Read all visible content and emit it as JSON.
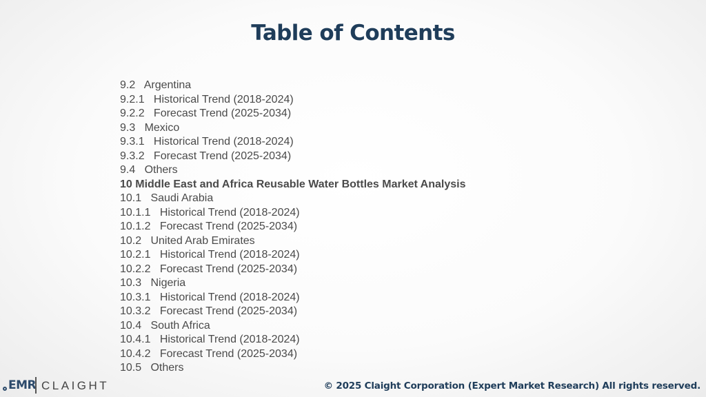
{
  "title": "Table of Contents",
  "toc": [
    {
      "text": "9.2   Argentina",
      "bold": false
    },
    {
      "text": "9.2.1   Historical Trend (2018-2024)",
      "bold": false
    },
    {
      "text": "9.2.2   Forecast Trend (2025-2034)",
      "bold": false
    },
    {
      "text": "9.3   Mexico",
      "bold": false
    },
    {
      "text": "9.3.1   Historical Trend (2018-2024)",
      "bold": false
    },
    {
      "text": "9.3.2   Forecast Trend (2025-2034)",
      "bold": false
    },
    {
      "text": "9.4   Others",
      "bold": false
    },
    {
      "text": "10 Middle East and Africa Reusable Water Bottles Market Analysis",
      "bold": true
    },
    {
      "text": "10.1   Saudi Arabia",
      "bold": false
    },
    {
      "text": "10.1.1   Historical Trend (2018-2024)",
      "bold": false
    },
    {
      "text": "10.1.2   Forecast Trend (2025-2034)",
      "bold": false
    },
    {
      "text": "10.2   United Arab Emirates",
      "bold": false
    },
    {
      "text": "10.2.1   Historical Trend (2018-2024)",
      "bold": false
    },
    {
      "text": "10.2.2   Forecast Trend (2025-2034)",
      "bold": false
    },
    {
      "text": "10.3   Nigeria",
      "bold": false
    },
    {
      "text": "10.3.1   Historical Trend (2018-2024)",
      "bold": false
    },
    {
      "text": "10.3.2   Forecast Trend (2025-2034)",
      "bold": false
    },
    {
      "text": "10.4   South Africa",
      "bold": false
    },
    {
      "text": "10.4.1   Historical Trend (2018-2024)",
      "bold": false
    },
    {
      "text": "10.4.2   Forecast Trend (2025-2034)",
      "bold": false
    },
    {
      "text": "10.5   Others",
      "bold": false
    }
  ],
  "logo": {
    "left": "EMR",
    "right": "CLAIGHT"
  },
  "footer": {
    "copyright": "© 2025 Claight Corporation (Expert Market Research) All rights reserved."
  },
  "colors": {
    "title": "#1f3d5a",
    "text": "#4a4a4a",
    "brand": "#2c4a6b"
  }
}
